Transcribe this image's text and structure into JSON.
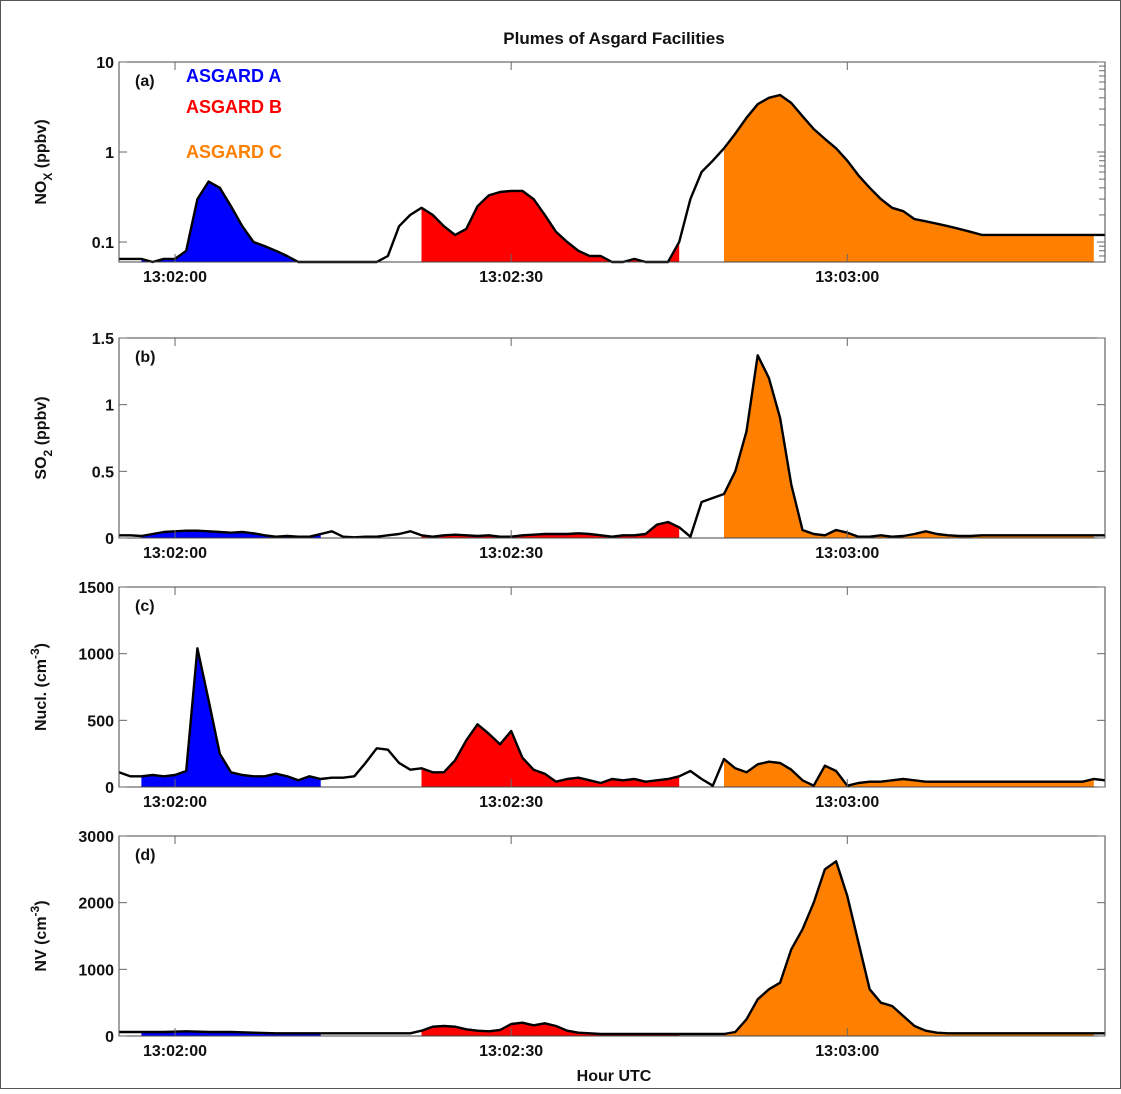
{
  "figure": {
    "title": "Plumes of Asgard Facilities",
    "xlabel": "Hour UTC"
  },
  "legend": [
    {
      "name": "ASGARD A",
      "color": "#0000ff"
    },
    {
      "name": "ASGARD B",
      "color": "#ff0000"
    },
    {
      "name": "ASGARD C",
      "color": "#ff8000"
    }
  ],
  "chart_data": [
    {
      "type": "area",
      "panel_label": "(a)",
      "ylabel": "NO",
      "ylabel_sub": "X",
      "ylabel_tail": " (ppbv)",
      "yscale": "log",
      "ylim": [
        0.06,
        10
      ],
      "yticks": [
        0.1,
        1,
        10
      ],
      "ytick_labels": [
        "0.1",
        "1",
        "10"
      ],
      "xticks": [
        0,
        30,
        60
      ],
      "xtick_labels": [
        "13:02:00",
        "13:02:30",
        "13:03:00"
      ],
      "xlim": [
        -5,
        83
      ],
      "time_seconds": [
        -5,
        -3,
        -2,
        -1,
        0,
        1,
        2,
        3,
        4,
        5,
        6,
        7,
        8,
        9,
        10,
        11,
        12,
        13,
        14,
        15,
        16,
        17,
        18,
        19,
        20,
        21,
        22,
        23,
        24,
        25,
        26,
        27,
        28,
        29,
        30,
        31,
        32,
        33,
        34,
        35,
        36,
        37,
        38,
        39,
        40,
        41,
        42,
        43,
        44,
        45,
        46,
        47,
        48,
        49,
        50,
        51,
        52,
        53,
        54,
        55,
        56,
        57,
        58,
        59,
        60,
        61,
        62,
        63,
        64,
        65,
        66,
        67,
        68,
        69,
        70,
        71,
        72,
        73,
        74,
        75,
        76,
        77,
        78,
        79,
        80,
        81,
        82,
        83
      ],
      "values": [
        0.065,
        0.065,
        0.06,
        0.065,
        0.065,
        0.08,
        0.3,
        0.47,
        0.4,
        0.25,
        0.15,
        0.1,
        0.09,
        0.08,
        0.07,
        0.06,
        0.06,
        0.06,
        0.055,
        0.06,
        0.06,
        0.055,
        0.06,
        0.07,
        0.15,
        0.2,
        0.24,
        0.2,
        0.15,
        0.12,
        0.14,
        0.25,
        0.33,
        0.36,
        0.37,
        0.37,
        0.3,
        0.2,
        0.13,
        0.1,
        0.08,
        0.07,
        0.07,
        0.06,
        0.06,
        0.065,
        0.06,
        0.06,
        0.06,
        0.1,
        0.3,
        0.6,
        0.8,
        1.1,
        1.6,
        2.4,
        3.4,
        4.0,
        4.3,
        3.5,
        2.5,
        1.8,
        1.4,
        1.1,
        0.8,
        0.55,
        0.4,
        0.3,
        0.24,
        0.22,
        0.18,
        0.17,
        0.16,
        0.15,
        0.14,
        0.13,
        0.12,
        0.12,
        0.12,
        0.12,
        0.12,
        0.12,
        0.12,
        0.12,
        0.12,
        0.12,
        0.12,
        0.12
      ],
      "segments": [
        {
          "name": "ASGARD A",
          "range": [
            -3,
            13
          ]
        },
        {
          "name": "ASGARD B",
          "range": [
            22,
            45
          ]
        },
        {
          "name": "ASGARD C",
          "range": [
            49,
            82
          ]
        }
      ]
    },
    {
      "type": "area",
      "panel_label": "(b)",
      "ylabel": "SO",
      "ylabel_sub": "2",
      "ylabel_tail": " (ppbv)",
      "yscale": "linear",
      "ylim": [
        0,
        1.5
      ],
      "yticks": [
        0,
        0.5,
        1,
        1.5
      ],
      "ytick_labels": [
        "0",
        "0.5",
        "1",
        "1.5"
      ],
      "xticks": [
        0,
        30,
        60
      ],
      "xtick_labels": [
        "13:02:00",
        "13:02:30",
        "13:03:00"
      ],
      "xlim": [
        -5,
        83
      ],
      "time_seconds": [
        -5,
        -4,
        -3,
        -2,
        -1,
        0,
        1,
        2,
        3,
        4,
        5,
        6,
        7,
        8,
        9,
        10,
        11,
        12,
        13,
        14,
        15,
        16,
        17,
        18,
        19,
        20,
        21,
        22,
        23,
        24,
        25,
        26,
        27,
        28,
        29,
        30,
        31,
        32,
        33,
        34,
        35,
        36,
        37,
        38,
        39,
        40,
        41,
        42,
        43,
        44,
        45,
        46,
        47,
        48,
        49,
        50,
        51,
        52,
        53,
        54,
        55,
        56,
        57,
        58,
        59,
        60,
        61,
        62,
        63,
        64,
        65,
        66,
        67,
        68,
        69,
        70,
        71,
        72,
        73,
        74,
        75,
        76,
        77,
        78,
        79,
        80,
        81,
        82,
        83
      ],
      "values": [
        0.02,
        0.02,
        0.015,
        0.03,
        0.045,
        0.05,
        0.055,
        0.055,
        0.05,
        0.045,
        0.04,
        0.045,
        0.035,
        0.02,
        0.01,
        0.015,
        0.01,
        0.01,
        0.03,
        0.05,
        0.01,
        0.005,
        0.01,
        0.01,
        0.02,
        0.03,
        0.05,
        0.02,
        0.01,
        0.02,
        0.025,
        0.02,
        0.015,
        0.02,
        0.01,
        0.01,
        0.02,
        0.025,
        0.03,
        0.03,
        0.03,
        0.035,
        0.03,
        0.02,
        0.01,
        0.02,
        0.02,
        0.03,
        0.1,
        0.12,
        0.08,
        0.01,
        0.27,
        0.3,
        0.33,
        0.5,
        0.8,
        1.37,
        1.2,
        0.9,
        0.4,
        0.06,
        0.03,
        0.02,
        0.06,
        0.04,
        0.01,
        0.01,
        0.02,
        0.01,
        0.015,
        0.03,
        0.05,
        0.03,
        0.02,
        0.015,
        0.015,
        0.02,
        0.02,
        0.02,
        0.02,
        0.02,
        0.02,
        0.02,
        0.02,
        0.02,
        0.02,
        0.02,
        0.02
      ],
      "segments": [
        {
          "name": "ASGARD A",
          "range": [
            -3,
            13
          ]
        },
        {
          "name": "ASGARD B",
          "range": [
            22,
            45
          ]
        },
        {
          "name": "ASGARD C",
          "range": [
            49,
            82
          ]
        }
      ]
    },
    {
      "type": "area",
      "panel_label": "(c)",
      "ylabel": "Nucl. (cm",
      "ylabel_sup": "-3",
      "ylabel_tail": ")",
      "yscale": "linear",
      "ylim": [
        0,
        1500
      ],
      "yticks": [
        0,
        500,
        1000,
        1500
      ],
      "ytick_labels": [
        "0",
        "500",
        "1000",
        "1500"
      ],
      "xticks": [
        0,
        30,
        60
      ],
      "xtick_labels": [
        "13:02:00",
        "13:02:30",
        "13:03:00"
      ],
      "xlim": [
        -5,
        83
      ],
      "time_seconds": [
        -5,
        -4,
        -3,
        -2,
        -1,
        0,
        1,
        2,
        3,
        4,
        5,
        6,
        7,
        8,
        9,
        10,
        11,
        12,
        13,
        14,
        15,
        16,
        17,
        18,
        19,
        20,
        21,
        22,
        23,
        24,
        25,
        26,
        27,
        28,
        29,
        30,
        31,
        32,
        33,
        34,
        35,
        36,
        37,
        38,
        39,
        40,
        41,
        42,
        43,
        44,
        45,
        46,
        47,
        48,
        49,
        50,
        51,
        52,
        53,
        54,
        55,
        56,
        57,
        58,
        59,
        60,
        61,
        62,
        63,
        64,
        65,
        66,
        67,
        68,
        69,
        70,
        71,
        72,
        73,
        74,
        75,
        76,
        77,
        78,
        79,
        80,
        81,
        82,
        83
      ],
      "values": [
        110,
        80,
        80,
        90,
        80,
        90,
        120,
        1040,
        650,
        250,
        110,
        90,
        80,
        80,
        100,
        80,
        50,
        80,
        60,
        70,
        70,
        80,
        180,
        290,
        280,
        180,
        130,
        140,
        110,
        110,
        200,
        350,
        470,
        400,
        320,
        420,
        220,
        130,
        100,
        40,
        60,
        70,
        50,
        30,
        60,
        50,
        60,
        40,
        50,
        60,
        80,
        120,
        60,
        10,
        210,
        140,
        110,
        170,
        190,
        180,
        130,
        50,
        10,
        160,
        120,
        10,
        30,
        40,
        40,
        50,
        60,
        50,
        40,
        40,
        40,
        40,
        40,
        40,
        40,
        40,
        40,
        40,
        40,
        40,
        40,
        40,
        40,
        60,
        50
      ],
      "segments": [
        {
          "name": "ASGARD A",
          "range": [
            -3,
            13
          ]
        },
        {
          "name": "ASGARD B",
          "range": [
            22,
            45
          ]
        },
        {
          "name": "ASGARD C",
          "range": [
            49,
            82
          ]
        }
      ]
    },
    {
      "type": "area",
      "panel_label": "(d)",
      "ylabel": "NV (cm",
      "ylabel_sup": "-3",
      "ylabel_tail": ")",
      "yscale": "linear",
      "ylim": [
        0,
        3000
      ],
      "yticks": [
        0,
        1000,
        2000,
        3000
      ],
      "ytick_labels": [
        "0",
        "1000",
        "2000",
        "3000"
      ],
      "xticks": [
        0,
        30,
        60
      ],
      "xtick_labels": [
        "13:02:00",
        "13:02:30",
        "13:03:00"
      ],
      "xlim": [
        -5,
        83
      ],
      "time_seconds": [
        -5,
        -3,
        -1,
        1,
        3,
        5,
        7,
        9,
        11,
        13,
        15,
        17,
        19,
        21,
        22,
        23,
        24,
        25,
        26,
        27,
        28,
        29,
        30,
        31,
        32,
        33,
        34,
        35,
        36,
        37,
        38,
        39,
        40,
        41,
        42,
        43,
        44,
        45,
        46,
        47,
        48,
        49,
        50,
        51,
        52,
        53,
        54,
        55,
        56,
        57,
        58,
        59,
        60,
        61,
        62,
        63,
        64,
        65,
        66,
        67,
        68,
        69,
        70,
        71,
        72,
        73,
        74,
        75,
        76,
        77,
        78,
        79,
        80,
        81,
        82,
        83
      ],
      "values": [
        60,
        60,
        60,
        70,
        60,
        60,
        50,
        40,
        40,
        40,
        40,
        40,
        40,
        40,
        80,
        140,
        150,
        140,
        100,
        80,
        70,
        90,
        180,
        200,
        160,
        190,
        150,
        80,
        50,
        40,
        30,
        30,
        30,
        30,
        30,
        30,
        30,
        30,
        30,
        30,
        30,
        30,
        60,
        250,
        550,
        700,
        800,
        1300,
        1600,
        2000,
        2500,
        2620,
        2100,
        1400,
        700,
        500,
        450,
        300,
        150,
        80,
        50,
        40,
        40,
        40,
        40,
        40,
        40,
        40,
        40,
        40,
        40,
        40,
        40,
        40,
        40,
        40
      ],
      "segments": [
        {
          "name": "ASGARD A",
          "range": [
            -3,
            13
          ]
        },
        {
          "name": "ASGARD B",
          "range": [
            22,
            45
          ]
        },
        {
          "name": "ASGARD C",
          "range": [
            49,
            82
          ]
        }
      ]
    }
  ]
}
